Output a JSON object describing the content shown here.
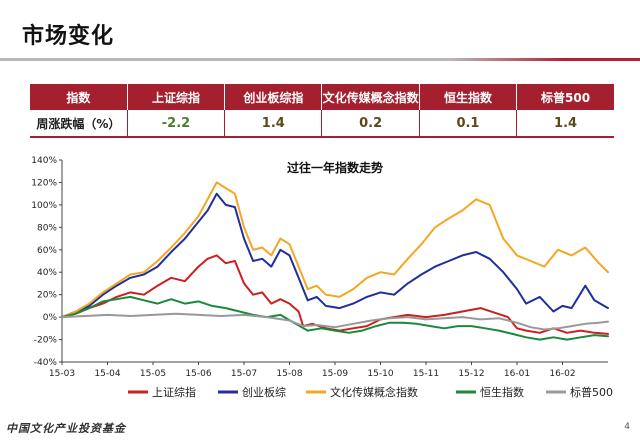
{
  "slide": {
    "title": "市场变化",
    "footer_logo": "中国文化产业投资基金",
    "page_number": "4"
  },
  "weekly_table": {
    "headers": [
      "指数",
      "上证综指",
      "创业板综指",
      "文化传媒概念指数",
      "恒生指数",
      "标普500"
    ],
    "row_label": "周涨跌幅（%）",
    "values": [
      "-2.2",
      "1.4",
      "0.2",
      "0.1",
      "1.4"
    ],
    "value_colors": [
      "#4e7d2a",
      "#5a4a1a",
      "#5a4a1a",
      "#5a4a1a",
      "#5a4a1a"
    ]
  },
  "chart_data": {
    "type": "line",
    "title": "过往一年指数走势",
    "xlabel": "",
    "ylabel": "",
    "x_ticks": [
      "15-03",
      "15-04",
      "15-05",
      "15-06",
      "15-07",
      "15-08",
      "15-09",
      "15-10",
      "15-11",
      "15-12",
      "16-01",
      "16-02"
    ],
    "x_range": [
      0,
      12
    ],
    "y_ticks": [
      "-40%",
      "-20%",
      "0%",
      "20%",
      "40%",
      "60%",
      "80%",
      "100%",
      "120%",
      "140%"
    ],
    "ylim": [
      -40,
      140
    ],
    "grid": false,
    "legend_position": "bottom",
    "series": [
      {
        "name": "上证综指",
        "color": "#cc1f1f",
        "points": [
          [
            0,
            0
          ],
          [
            0.3,
            3
          ],
          [
            0.6,
            8
          ],
          [
            0.9,
            12
          ],
          [
            1.2,
            18
          ],
          [
            1.5,
            22
          ],
          [
            1.8,
            20
          ],
          [
            2.1,
            28
          ],
          [
            2.4,
            35
          ],
          [
            2.7,
            32
          ],
          [
            3.0,
            45
          ],
          [
            3.2,
            52
          ],
          [
            3.4,
            55
          ],
          [
            3.6,
            48
          ],
          [
            3.8,
            50
          ],
          [
            4.0,
            30
          ],
          [
            4.2,
            20
          ],
          [
            4.4,
            22
          ],
          [
            4.6,
            12
          ],
          [
            4.8,
            16
          ],
          [
            5.0,
            12
          ],
          [
            5.2,
            5
          ],
          [
            5.3,
            -8
          ],
          [
            5.5,
            -6
          ],
          [
            5.8,
            -10
          ],
          [
            6.1,
            -12
          ],
          [
            6.4,
            -10
          ],
          [
            6.7,
            -8
          ],
          [
            7.0,
            -2
          ],
          [
            7.3,
            0
          ],
          [
            7.6,
            2
          ],
          [
            8.0,
            0
          ],
          [
            8.4,
            2
          ],
          [
            8.8,
            5
          ],
          [
            9.2,
            8
          ],
          [
            9.5,
            4
          ],
          [
            9.8,
            0
          ],
          [
            10.0,
            -10
          ],
          [
            10.2,
            -12
          ],
          [
            10.5,
            -14
          ],
          [
            10.8,
            -10
          ],
          [
            11.1,
            -14
          ],
          [
            11.4,
            -12
          ],
          [
            11.7,
            -14
          ],
          [
            12.0,
            -15
          ]
        ]
      },
      {
        "name": "创业板综",
        "color": "#1f2f9e",
        "points": [
          [
            0,
            0
          ],
          [
            0.3,
            5
          ],
          [
            0.6,
            10
          ],
          [
            0.9,
            20
          ],
          [
            1.2,
            28
          ],
          [
            1.5,
            35
          ],
          [
            1.8,
            38
          ],
          [
            2.1,
            45
          ],
          [
            2.4,
            58
          ],
          [
            2.7,
            70
          ],
          [
            3.0,
            85
          ],
          [
            3.2,
            95
          ],
          [
            3.4,
            110
          ],
          [
            3.6,
            100
          ],
          [
            3.8,
            98
          ],
          [
            4.0,
            70
          ],
          [
            4.2,
            50
          ],
          [
            4.4,
            52
          ],
          [
            4.6,
            45
          ],
          [
            4.8,
            60
          ],
          [
            5.0,
            55
          ],
          [
            5.2,
            35
          ],
          [
            5.4,
            15
          ],
          [
            5.6,
            18
          ],
          [
            5.8,
            10
          ],
          [
            6.1,
            8
          ],
          [
            6.4,
            12
          ],
          [
            6.7,
            18
          ],
          [
            7.0,
            22
          ],
          [
            7.3,
            20
          ],
          [
            7.6,
            30
          ],
          [
            7.9,
            38
          ],
          [
            8.2,
            45
          ],
          [
            8.5,
            50
          ],
          [
            8.8,
            55
          ],
          [
            9.1,
            58
          ],
          [
            9.4,
            52
          ],
          [
            9.7,
            40
          ],
          [
            10.0,
            25
          ],
          [
            10.2,
            12
          ],
          [
            10.5,
            18
          ],
          [
            10.8,
            5
          ],
          [
            11.0,
            10
          ],
          [
            11.2,
            8
          ],
          [
            11.5,
            28
          ],
          [
            11.7,
            15
          ],
          [
            12.0,
            8
          ]
        ]
      },
      {
        "name": "文化传媒概念指数",
        "color": "#f5a623",
        "points": [
          [
            0,
            0
          ],
          [
            0.3,
            5
          ],
          [
            0.6,
            12
          ],
          [
            0.9,
            22
          ],
          [
            1.2,
            30
          ],
          [
            1.5,
            38
          ],
          [
            1.8,
            40
          ],
          [
            2.1,
            50
          ],
          [
            2.4,
            62
          ],
          [
            2.7,
            75
          ],
          [
            3.0,
            90
          ],
          [
            3.2,
            105
          ],
          [
            3.4,
            120
          ],
          [
            3.6,
            115
          ],
          [
            3.8,
            110
          ],
          [
            4.0,
            80
          ],
          [
            4.2,
            60
          ],
          [
            4.4,
            62
          ],
          [
            4.6,
            55
          ],
          [
            4.8,
            70
          ],
          [
            5.0,
            65
          ],
          [
            5.2,
            45
          ],
          [
            5.4,
            25
          ],
          [
            5.6,
            28
          ],
          [
            5.8,
            20
          ],
          [
            6.1,
            18
          ],
          [
            6.4,
            25
          ],
          [
            6.7,
            35
          ],
          [
            7.0,
            40
          ],
          [
            7.3,
            38
          ],
          [
            7.6,
            52
          ],
          [
            7.9,
            65
          ],
          [
            8.2,
            80
          ],
          [
            8.5,
            88
          ],
          [
            8.8,
            95
          ],
          [
            9.1,
            105
          ],
          [
            9.4,
            100
          ],
          [
            9.7,
            70
          ],
          [
            10.0,
            55
          ],
          [
            10.3,
            50
          ],
          [
            10.6,
            45
          ],
          [
            10.9,
            60
          ],
          [
            11.2,
            55
          ],
          [
            11.5,
            62
          ],
          [
            11.8,
            48
          ],
          [
            12.0,
            40
          ]
        ]
      },
      {
        "name": "恒生指数",
        "color": "#1a8a3a",
        "points": [
          [
            0,
            0
          ],
          [
            0.3,
            3
          ],
          [
            0.6,
            8
          ],
          [
            0.9,
            14
          ],
          [
            1.2,
            16
          ],
          [
            1.5,
            18
          ],
          [
            1.8,
            15
          ],
          [
            2.1,
            12
          ],
          [
            2.4,
            16
          ],
          [
            2.7,
            12
          ],
          [
            3.0,
            14
          ],
          [
            3.3,
            10
          ],
          [
            3.6,
            8
          ],
          [
            3.9,
            5
          ],
          [
            4.2,
            2
          ],
          [
            4.5,
            0
          ],
          [
            4.8,
            2
          ],
          [
            5.1,
            -5
          ],
          [
            5.4,
            -12
          ],
          [
            5.7,
            -10
          ],
          [
            6.0,
            -12
          ],
          [
            6.3,
            -14
          ],
          [
            6.6,
            -12
          ],
          [
            6.9,
            -8
          ],
          [
            7.2,
            -5
          ],
          [
            7.5,
            -5
          ],
          [
            7.8,
            -6
          ],
          [
            8.1,
            -8
          ],
          [
            8.4,
            -10
          ],
          [
            8.7,
            -8
          ],
          [
            9.0,
            -8
          ],
          [
            9.3,
            -10
          ],
          [
            9.6,
            -12
          ],
          [
            9.9,
            -15
          ],
          [
            10.2,
            -18
          ],
          [
            10.5,
            -20
          ],
          [
            10.8,
            -18
          ],
          [
            11.1,
            -20
          ],
          [
            11.4,
            -18
          ],
          [
            11.7,
            -16
          ],
          [
            12.0,
            -17
          ]
        ]
      },
      {
        "name": "标普500",
        "color": "#999999",
        "points": [
          [
            0,
            0
          ],
          [
            0.5,
            1
          ],
          [
            1.0,
            2
          ],
          [
            1.5,
            1
          ],
          [
            2.0,
            2
          ],
          [
            2.5,
            3
          ],
          [
            3.0,
            2
          ],
          [
            3.5,
            1
          ],
          [
            4.0,
            2
          ],
          [
            4.5,
            0
          ],
          [
            5.0,
            -3
          ],
          [
            5.3,
            -8
          ],
          [
            5.6,
            -7
          ],
          [
            6.0,
            -9
          ],
          [
            6.4,
            -6
          ],
          [
            6.8,
            -3
          ],
          [
            7.2,
            -1
          ],
          [
            7.6,
            0
          ],
          [
            8.0,
            -2
          ],
          [
            8.4,
            -1
          ],
          [
            8.8,
            0
          ],
          [
            9.2,
            -2
          ],
          [
            9.6,
            -1
          ],
          [
            10.0,
            -5
          ],
          [
            10.3,
            -9
          ],
          [
            10.6,
            -11
          ],
          [
            10.9,
            -10
          ],
          [
            11.2,
            -8
          ],
          [
            11.5,
            -6
          ],
          [
            11.8,
            -5
          ],
          [
            12.0,
            -4
          ]
        ]
      }
    ]
  }
}
